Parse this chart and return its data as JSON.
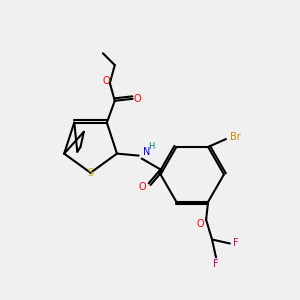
{
  "bg_color": "#f0f0f0",
  "bond_color": "#000000",
  "title": "",
  "atoms": {
    "S": {
      "color": "#ccaa00",
      "symbol": "S"
    },
    "O_red": {
      "color": "#ff0000",
      "symbol": "O"
    },
    "N": {
      "color": "#0000ff",
      "symbol": "N"
    },
    "H": {
      "color": "#008080",
      "symbol": "H"
    },
    "Br": {
      "color": "#cc8800",
      "symbol": "Br"
    },
    "F1": {
      "color": "#cc0066",
      "symbol": "F"
    },
    "F2": {
      "color": "#cc0066",
      "symbol": "F"
    }
  }
}
